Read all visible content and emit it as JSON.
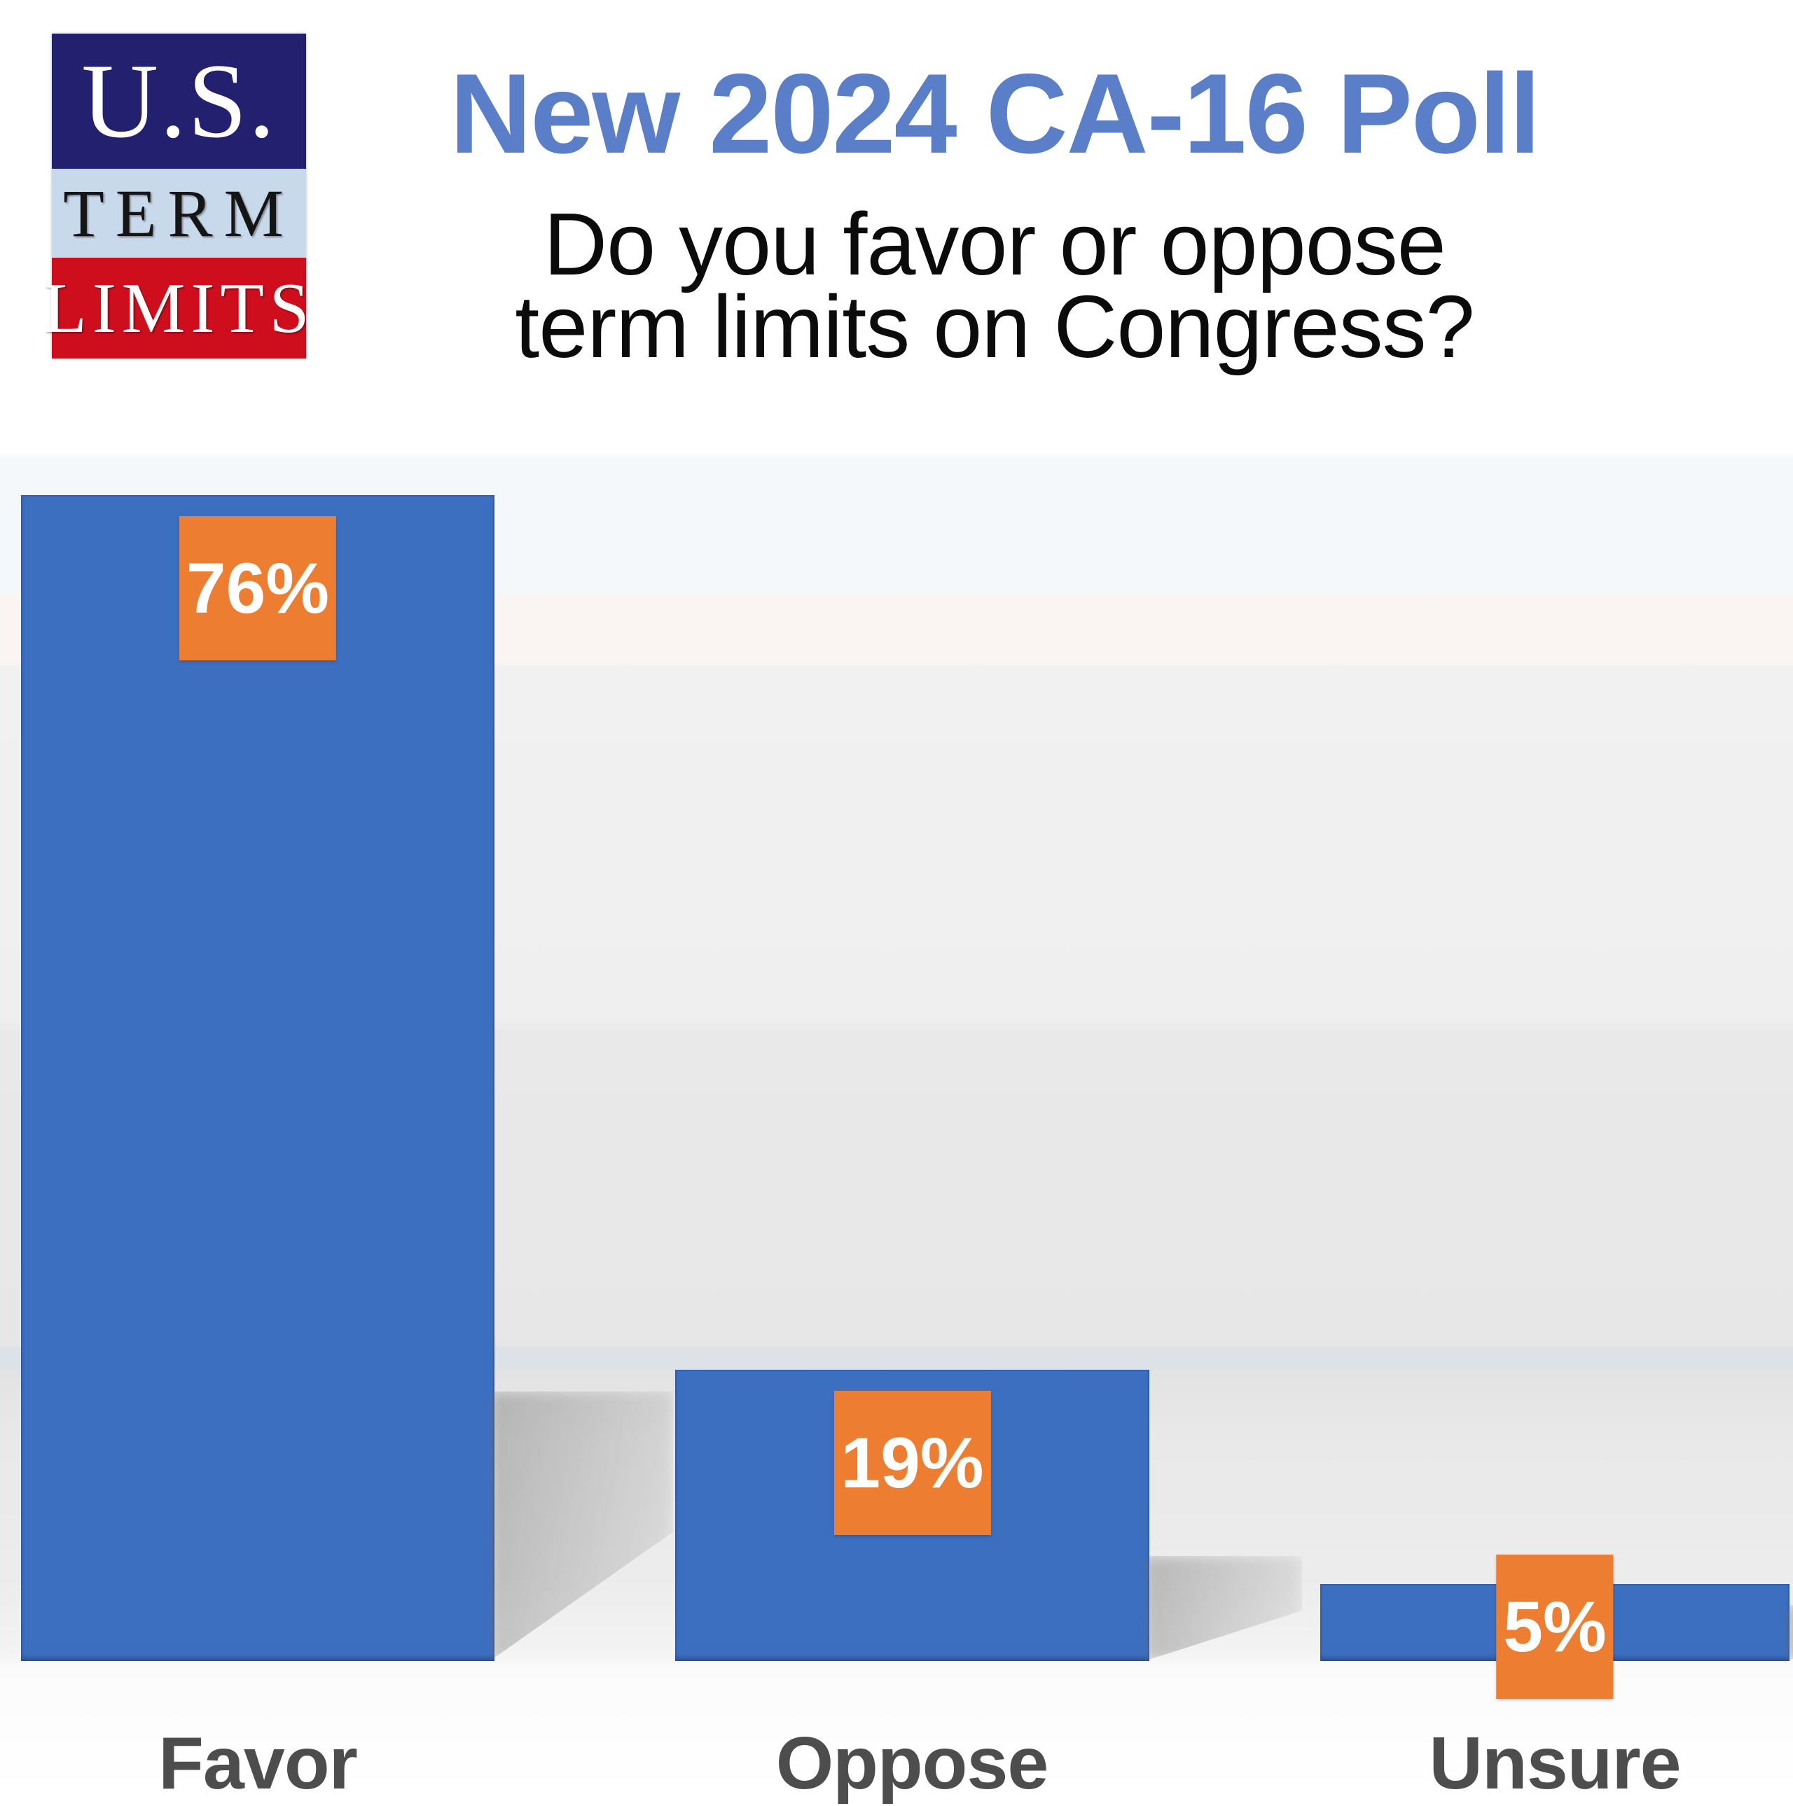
{
  "logo": {
    "us": "U.S.",
    "term": "TERM",
    "limits": "LIMITS",
    "navy_color": "#23206f",
    "light_blue_color": "#c9d9ec",
    "red_color": "#ce0e1d"
  },
  "header": {
    "title": "New 2024 CA-16 Poll",
    "title_color": "#5b7ec8",
    "subtitle_line1": "Do you favor or oppose",
    "subtitle_line2": "term limits on Congress?"
  },
  "chart_data": {
    "type": "bar",
    "title": "New 2024 CA-16 Poll",
    "question": "Do you favor or oppose term limits on Congress?",
    "categories": [
      "Favor",
      "Oppose",
      "Unsure"
    ],
    "values": [
      76,
      19,
      5
    ],
    "data_labels": [
      "76%",
      "19%",
      "5%"
    ],
    "unit": "percent",
    "ylim": [
      0,
      80
    ],
    "grid": false,
    "legend": false,
    "bar_color": "#3d6fc1",
    "label_bg_color": "#ed7d31",
    "label_text_color": "#ffffff",
    "category_label_color": "#4d4d4d"
  }
}
